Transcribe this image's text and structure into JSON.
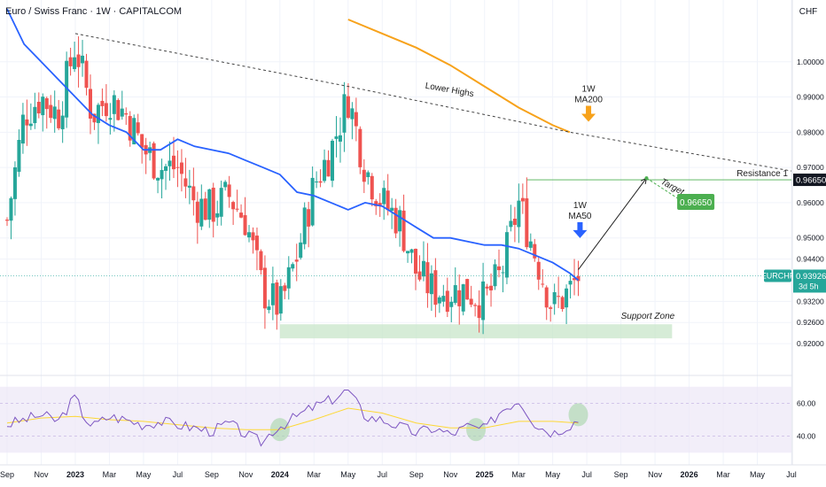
{
  "header": {
    "title": "Euro / Swiss Franc · 1W · CAPITALCOM",
    "currency": "CHF"
  },
  "colors": {
    "up": "#26a69a",
    "down": "#ef5350",
    "ma50": "#2962ff",
    "ma200": "#f7a21b",
    "rsi": "#7e57c2",
    "rsi_ma": "#fdd835",
    "support": "#c8e6c9",
    "target_box": "#4caf50",
    "price_tag": "#26a69a"
  },
  "chart_data": {
    "type": "candlestick",
    "symbol": "EURCHF",
    "y_range": [
      0.915,
      1.012
    ],
    "y_ticks": [
      {
        "v": 1.0,
        "label": "1.00000"
      },
      {
        "v": 0.99,
        "label": "0.99000"
      },
      {
        "v": 0.98,
        "label": "0.98000"
      },
      {
        "v": 0.97,
        "label": "0.97000"
      },
      {
        "v": 0.96,
        "label": "0.96000"
      },
      {
        "v": 0.95,
        "label": "0.95000"
      },
      {
        "v": 0.944,
        "label": "0.94400"
      },
      {
        "v": 0.932,
        "label": "0.93200"
      },
      {
        "v": 0.926,
        "label": "0.92600"
      },
      {
        "v": 0.92,
        "label": "0.92000"
      }
    ],
    "x_ticks": [
      {
        "t": 0,
        "label": "Sep",
        "bold": false
      },
      {
        "t": 2,
        "label": "Nov",
        "bold": false
      },
      {
        "t": 4,
        "label": "2023",
        "bold": true
      },
      {
        "t": 6,
        "label": "Mar",
        "bold": false
      },
      {
        "t": 8,
        "label": "May",
        "bold": false
      },
      {
        "t": 10,
        "label": "Jul",
        "bold": false
      },
      {
        "t": 12,
        "label": "Sep",
        "bold": false
      },
      {
        "t": 14,
        "label": "Nov",
        "bold": false
      },
      {
        "t": 16,
        "label": "2024",
        "bold": true
      },
      {
        "t": 18,
        "label": "Mar",
        "bold": false
      },
      {
        "t": 20,
        "label": "May",
        "bold": false
      },
      {
        "t": 22,
        "label": "Jul",
        "bold": false
      },
      {
        "t": 24,
        "label": "Sep",
        "bold": false
      },
      {
        "t": 26,
        "label": "Nov",
        "bold": false
      },
      {
        "t": 28,
        "label": "2025",
        "bold": true
      },
      {
        "t": 30,
        "label": "Mar",
        "bold": false
      },
      {
        "t": 32,
        "label": "May",
        "bold": false
      },
      {
        "t": 34,
        "label": "Jul",
        "bold": false
      },
      {
        "t": 36,
        "label": "Sep",
        "bold": false
      },
      {
        "t": 38,
        "label": "Nov",
        "bold": false
      },
      {
        "t": 40,
        "label": "2026",
        "bold": true
      },
      {
        "t": 42,
        "label": "Mar",
        "bold": false
      },
      {
        "t": 44,
        "label": "May",
        "bold": false
      },
      {
        "t": 46,
        "label": "Jul",
        "bold": false
      }
    ],
    "anchors": [
      [
        0,
        0.955
      ],
      [
        1,
        0.985
      ],
      [
        2,
        0.99
      ],
      [
        3,
        0.985
      ],
      [
        4,
        1.005
      ],
      [
        5,
        0.985
      ],
      [
        6,
        0.99
      ],
      [
        7,
        0.985
      ],
      [
        8,
        0.975
      ],
      [
        9,
        0.97
      ],
      [
        10,
        0.97
      ],
      [
        11,
        0.96
      ],
      [
        12,
        0.958
      ],
      [
        13,
        0.962
      ],
      [
        14,
        0.955
      ],
      [
        15,
        0.935
      ],
      [
        16,
        0.93
      ],
      [
        17,
        0.945
      ],
      [
        18,
        0.965
      ],
      [
        19,
        0.975
      ],
      [
        20,
        0.99
      ],
      [
        21,
        0.97
      ],
      [
        22,
        0.96
      ],
      [
        23,
        0.955
      ],
      [
        24,
        0.94
      ],
      [
        25,
        0.935
      ],
      [
        26,
        0.935
      ],
      [
        27,
        0.935
      ],
      [
        28,
        0.932
      ],
      [
        29,
        0.94
      ],
      [
        30,
        0.96
      ],
      [
        31,
        0.945
      ],
      [
        32,
        0.93
      ],
      [
        33,
        0.935
      ],
      [
        33.5,
        0.939
      ]
    ],
    "ma50": [
      [
        0,
        1.015
      ],
      [
        1,
        1.005
      ],
      [
        2,
        1.0
      ],
      [
        3,
        0.995
      ],
      [
        4,
        0.99
      ],
      [
        5,
        0.985
      ],
      [
        6,
        0.982
      ],
      [
        7,
        0.98
      ],
      [
        8,
        0.975
      ],
      [
        9,
        0.975
      ],
      [
        10,
        0.978
      ],
      [
        11,
        0.976
      ],
      [
        12,
        0.975
      ],
      [
        13,
        0.974
      ],
      [
        14,
        0.972
      ],
      [
        15,
        0.97
      ],
      [
        16,
        0.968
      ],
      [
        17,
        0.963
      ],
      [
        18,
        0.962
      ],
      [
        19,
        0.96
      ],
      [
        20,
        0.958
      ],
      [
        21,
        0.96
      ],
      [
        22,
        0.959
      ],
      [
        23,
        0.956
      ],
      [
        24,
        0.953
      ],
      [
        25,
        0.95
      ],
      [
        26,
        0.95
      ],
      [
        27,
        0.949
      ],
      [
        28,
        0.948
      ],
      [
        29,
        0.948
      ],
      [
        30,
        0.947
      ],
      [
        31,
        0.945
      ],
      [
        32,
        0.943
      ],
      [
        33,
        0.94
      ],
      [
        33.5,
        0.938
      ]
    ],
    "ma200": [
      [
        20,
        1.012
      ],
      [
        22,
        1.008
      ],
      [
        24,
        1.004
      ],
      [
        26,
        0.999
      ],
      [
        28,
        0.993
      ],
      [
        30,
        0.987
      ],
      [
        32,
        0.982
      ],
      [
        33,
        0.98
      ]
    ],
    "lower_highs_line": [
      [
        4,
        1.008
      ],
      [
        20,
        0.993
      ],
      [
        33,
        0.98
      ],
      [
        46,
        0.969
      ]
    ],
    "resistance": {
      "value": 0.9665,
      "label": "Resistance 1",
      "t_start": 30.5,
      "price_label": "0.96650"
    },
    "current_price": {
      "value": 0.93926,
      "symbol": "EURCHF",
      "label": "0.93926",
      "countdown": "3d 5h"
    },
    "support_zone": {
      "from": 0.9215,
      "to": 0.9255,
      "t_start": 16,
      "t_end": 39,
      "label": "Support Zone"
    },
    "projection": {
      "from": [
        33.5,
        0.941
      ],
      "to": [
        37.5,
        0.967
      ]
    },
    "target": {
      "label": "Target",
      "value_label": "0.96650"
    },
    "annotations": {
      "lower_highs": "Lower Highs",
      "ma200_label_top": "1W",
      "ma200_label_bottom": "MA200",
      "ma50_label_top": "1W",
      "ma50_label_bottom": "MA50"
    },
    "rsi": {
      "y_range": [
        28,
        72
      ],
      "y_ticks": [
        {
          "v": 60,
          "label": "60.00"
        },
        {
          "v": 40,
          "label": "40.00"
        }
      ],
      "band": [
        30,
        70
      ],
      "anchors": [
        [
          0,
          47
        ],
        [
          1,
          50
        ],
        [
          2,
          53
        ],
        [
          3,
          49
        ],
        [
          4,
          64
        ],
        [
          4.5,
          52
        ],
        [
          5,
          46
        ],
        [
          6,
          52
        ],
        [
          7,
          50
        ],
        [
          8,
          47
        ],
        [
          9,
          49
        ],
        [
          10,
          47
        ],
        [
          11,
          45
        ],
        [
          12,
          43
        ],
        [
          13,
          48
        ],
        [
          14,
          41
        ],
        [
          15,
          36
        ],
        [
          15.5,
          43
        ],
        [
          16,
          46
        ],
        [
          17,
          52
        ],
        [
          18,
          58
        ],
        [
          19,
          62
        ],
        [
          20,
          68
        ],
        [
          20.5,
          60
        ],
        [
          21,
          52
        ],
        [
          22,
          50
        ],
        [
          23,
          46
        ],
        [
          24,
          42
        ],
        [
          25,
          45
        ],
        [
          26,
          41
        ],
        [
          27,
          46
        ],
        [
          28,
          44
        ],
        [
          29,
          56
        ],
        [
          30,
          62
        ],
        [
          30.5,
          55
        ],
        [
          31,
          47
        ],
        [
          32,
          42
        ],
        [
          33,
          47
        ],
        [
          33.5,
          50
        ]
      ],
      "ma_anchors": [
        [
          0,
          48
        ],
        [
          2,
          51
        ],
        [
          4,
          52
        ],
        [
          6,
          50
        ],
        [
          8,
          49
        ],
        [
          10,
          47
        ],
        [
          12,
          45
        ],
        [
          14,
          44
        ],
        [
          16,
          44
        ],
        [
          18,
          50
        ],
        [
          20,
          57
        ],
        [
          22,
          54
        ],
        [
          24,
          48
        ],
        [
          26,
          45
        ],
        [
          28,
          45
        ],
        [
          30,
          49
        ],
        [
          32,
          49
        ],
        [
          33.5,
          48
        ]
      ],
      "highlights": [
        [
          16,
          44
        ],
        [
          27.5,
          44
        ],
        [
          33.5,
          53
        ]
      ]
    }
  }
}
